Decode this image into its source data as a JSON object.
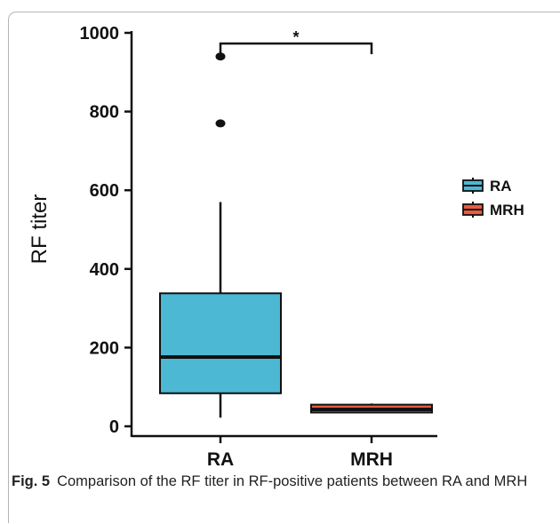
{
  "caption": {
    "label": "Fig. 5",
    "text": "Comparison of the RF titer in RF-positive patients between RA and MRH"
  },
  "chart_data": {
    "type": "box",
    "ylabel": "RF titer",
    "xlabel": "",
    "ylim": [
      0,
      1000
    ],
    "yticks": [
      "0",
      "200",
      "400",
      "600",
      "800",
      "1000"
    ],
    "categories": [
      "RA",
      "MRH"
    ],
    "legend": {
      "position": "right",
      "entries": [
        "RA",
        "MRH"
      ]
    },
    "boxes": [
      {
        "name": "RA",
        "color": "#4cb8d4",
        "whisker_low": 22,
        "q1": 84,
        "median": 176,
        "q3": 338,
        "whisker_high": 570,
        "outliers": [
          770,
          940
        ]
      },
      {
        "name": "MRH",
        "color": "#ea5b3f",
        "whisker_low": 35,
        "q1": 35,
        "median": 43,
        "q3": 55,
        "whisker_high": 58,
        "outliers": []
      }
    ],
    "significance": {
      "label": "*",
      "between": [
        "RA",
        "MRH"
      ]
    }
  }
}
